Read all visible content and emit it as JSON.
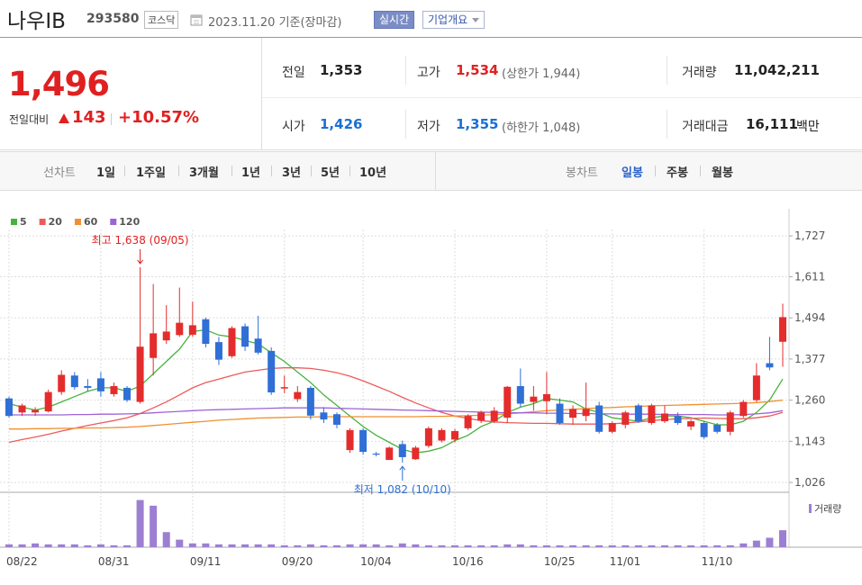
{
  "header": {
    "name": "나우IB",
    "code": "293580",
    "market": "코스닥",
    "date": "2023.11.20 기준(장마감)",
    "realtime_button": "실시간",
    "company_button": "기업개요"
  },
  "quote": {
    "price": "1,496",
    "change_label": "전일대비",
    "change": "143",
    "change_rate": "+10.57%",
    "items": [
      {
        "label": "전일",
        "value": "1,353"
      },
      {
        "label": "고가",
        "value": "1,534",
        "note": "(상한가 1,944)"
      },
      {
        "label": "거래량",
        "value": "11,042,211"
      },
      {
        "label": "시가",
        "value": "1,426"
      },
      {
        "label": "저가",
        "value": "1,355",
        "note": "(하한가 1,048)"
      },
      {
        "label": "거래대금",
        "value": "16,111",
        "unit": "백만"
      }
    ]
  },
  "tabs": {
    "line_label": "선차트",
    "line_periods": [
      "1일",
      "1주일",
      "3개월",
      "1년",
      "3년",
      "5년",
      "10년"
    ],
    "candle_label": "봉차트",
    "candle_periods": [
      "일봉",
      "주봉",
      "월봉"
    ],
    "selected_index": 0
  },
  "chart_data": [
    {
      "type": "candlestick",
      "categories": [
        "08/22",
        null,
        null,
        null,
        null,
        null,
        null,
        "08/31",
        null,
        null,
        null,
        null,
        null,
        null,
        "09/11",
        null,
        null,
        null,
        null,
        null,
        null,
        "09/20",
        null,
        null,
        null,
        null,
        null,
        "10/04",
        null,
        null,
        null,
        null,
        null,
        null,
        "10/16",
        null,
        null,
        null,
        null,
        null,
        null,
        "10/25",
        null,
        null,
        null,
        null,
        "11/01",
        null,
        null,
        null,
        null,
        null,
        null,
        "11/10",
        null,
        null,
        null,
        null,
        null,
        null
      ],
      "open": [
        1265,
        1225,
        1225,
        1228,
        1283,
        1330,
        1300,
        1322,
        1277,
        1295,
        1255,
        1380,
        1430,
        1445,
        1446,
        1490,
        1425,
        1385,
        1470,
        1435,
        1400,
        1293,
        1263,
        1295,
        1225,
        1220,
        1118,
        1175,
        1108,
        1090,
        1135,
        1092,
        1130,
        1145,
        1148,
        1180,
        1202,
        1200,
        1210,
        1300,
        1255,
        1257,
        1250,
        1210,
        1215,
        1245,
        1170,
        1190,
        1245,
        1195,
        1200,
        1215,
        1185,
        1195,
        1190,
        1170,
        1215,
        1260,
        1365,
        1426
      ],
      "high": [
        1270,
        1250,
        1240,
        1290,
        1345,
        1340,
        1320,
        1340,
        1310,
        1300,
        1638,
        1590,
        1530,
        1580,
        1540,
        1495,
        1440,
        1470,
        1478,
        1500,
        1410,
        1330,
        1300,
        1300,
        1240,
        1225,
        1180,
        1180,
        1113,
        1128,
        1145,
        1130,
        1185,
        1180,
        1178,
        1220,
        1230,
        1240,
        1300,
        1350,
        1300,
        1340,
        1265,
        1245,
        1310,
        1255,
        1200,
        1230,
        1250,
        1250,
        1245,
        1225,
        1205,
        1200,
        1195,
        1230,
        1260,
        1365,
        1440,
        1534
      ],
      "low": [
        1210,
        1215,
        1215,
        1225,
        1275,
        1290,
        1285,
        1270,
        1270,
        1255,
        1250,
        1330,
        1420,
        1440,
        1440,
        1410,
        1360,
        1380,
        1400,
        1390,
        1275,
        1280,
        1255,
        1205,
        1195,
        1180,
        1110,
        1105,
        1100,
        1090,
        1082,
        1090,
        1125,
        1140,
        1140,
        1175,
        1195,
        1195,
        1195,
        1240,
        1230,
        1220,
        1190,
        1190,
        1200,
        1165,
        1165,
        1180,
        1195,
        1190,
        1195,
        1190,
        1175,
        1150,
        1165,
        1160,
        1210,
        1255,
        1345,
        1355
      ],
      "close": [
        1215,
        1245,
        1232,
        1283,
        1332,
        1297,
        1295,
        1285,
        1300,
        1260,
        1412,
        1450,
        1455,
        1480,
        1473,
        1420,
        1375,
        1465,
        1412,
        1395,
        1282,
        1297,
        1283,
        1216,
        1205,
        1190,
        1175,
        1113,
        1105,
        1125,
        1098,
        1125,
        1180,
        1175,
        1172,
        1215,
        1225,
        1230,
        1298,
        1250,
        1270,
        1277,
        1195,
        1235,
        1235,
        1170,
        1195,
        1225,
        1200,
        1245,
        1222,
        1195,
        1200,
        1155,
        1170,
        1225,
        1255,
        1330,
        1353,
        1496
      ],
      "up_color": "#e52c2c",
      "down_color": "#2f6fd6",
      "series": [
        {
          "name": "5",
          "color": "#47b33c",
          "values": [
            1250,
            1240,
            1232,
            1240,
            1255,
            1270,
            1285,
            1295,
            1295,
            1285,
            1300,
            1335,
            1370,
            1405,
            1455,
            1460,
            1445,
            1440,
            1430,
            1420,
            1395,
            1370,
            1340,
            1310,
            1275,
            1245,
            1215,
            1185,
            1160,
            1140,
            1120,
            1110,
            1115,
            1125,
            1145,
            1160,
            1185,
            1200,
            1225,
            1240,
            1250,
            1265,
            1260,
            1255,
            1235,
            1225,
            1210,
            1205,
            1200,
            1210,
            1215,
            1215,
            1210,
            1200,
            1190,
            1190,
            1200,
            1225,
            1260,
            1320
          ]
        },
        {
          "name": "20",
          "color": "#ee5a5a",
          "values": [
            1140,
            1148,
            1155,
            1163,
            1172,
            1180,
            1188,
            1195,
            1202,
            1210,
            1222,
            1238,
            1255,
            1275,
            1295,
            1310,
            1320,
            1330,
            1340,
            1345,
            1350,
            1352,
            1352,
            1350,
            1345,
            1338,
            1328,
            1315,
            1300,
            1285,
            1268,
            1252,
            1238,
            1225,
            1215,
            1208,
            1202,
            1198,
            1196,
            1195,
            1194,
            1194,
            1193,
            1192,
            1192,
            1192,
            1193,
            1195,
            1198,
            1202,
            1205,
            1207,
            1208,
            1209,
            1208,
            1207,
            1207,
            1210,
            1215,
            1225
          ]
        },
        {
          "name": "60",
          "color": "#f0902f",
          "values": [
            1178,
            1178,
            1179,
            1179,
            1180,
            1180,
            1181,
            1181,
            1182,
            1183,
            1185,
            1188,
            1191,
            1194,
            1197,
            1200,
            1203,
            1205,
            1207,
            1209,
            1210,
            1211,
            1212,
            1212,
            1213,
            1213,
            1213,
            1213,
            1213,
            1213,
            1213,
            1213,
            1214,
            1214,
            1215,
            1216,
            1217,
            1219,
            1221,
            1224,
            1227,
            1230,
            1232,
            1234,
            1236,
            1238,
            1239,
            1241,
            1242,
            1244,
            1245,
            1246,
            1247,
            1248,
            1249,
            1250,
            1251,
            1253,
            1256,
            1260
          ]
        },
        {
          "name": "120",
          "color": "#9d63d6",
          "values": [
            1218,
            1218,
            1218,
            1218,
            1218,
            1219,
            1219,
            1220,
            1220,
            1221,
            1222,
            1224,
            1226,
            1228,
            1230,
            1232,
            1233,
            1234,
            1235,
            1236,
            1237,
            1238,
            1238,
            1238,
            1238,
            1237,
            1236,
            1235,
            1234,
            1233,
            1232,
            1231,
            1230,
            1229,
            1228,
            1227,
            1226,
            1225,
            1224,
            1224,
            1224,
            1223,
            1223,
            1222,
            1222,
            1221,
            1221,
            1220,
            1220,
            1220,
            1219,
            1219,
            1219,
            1219,
            1218,
            1218,
            1219,
            1221,
            1224,
            1230
          ]
        }
      ],
      "ylim": [
        998,
        1758
      ],
      "yticks": [
        {
          "value": 1026,
          "label": "1,026"
        },
        {
          "value": 1143,
          "label": "1,143"
        },
        {
          "value": 1260,
          "label": "1,260"
        },
        {
          "value": 1377,
          "label": "1,377"
        },
        {
          "value": 1494,
          "label": "1,494"
        },
        {
          "value": 1611,
          "label": "1,611"
        },
        {
          "value": 1727,
          "label": "1,727"
        }
      ],
      "grid": true,
      "legend": "top-left",
      "annotations": [
        {
          "text": "최고 1,638 (09/05)",
          "value": 1638,
          "color": "#e02020"
        },
        {
          "text": "최저 1,082 (10/10)",
          "value": 1082,
          "color": "#2f6fd6"
        }
      ]
    },
    {
      "type": "bar",
      "series": [
        {
          "name": "거래량",
          "color": "#9c7fd2",
          "values": [
            1840000,
            1840000,
            2450000,
            1840000,
            1840000,
            1840000,
            1230000,
            1840000,
            1230000,
            1230000,
            30650000,
            26970000,
            9810000,
            4900000,
            2450000,
            2450000,
            1840000,
            1840000,
            1840000,
            1840000,
            1840000,
            1230000,
            1230000,
            1840000,
            1230000,
            1230000,
            1840000,
            1840000,
            1840000,
            1230000,
            2450000,
            1840000,
            1230000,
            1230000,
            1230000,
            1230000,
            1230000,
            1230000,
            1840000,
            1840000,
            1230000,
            1230000,
            1230000,
            1230000,
            1230000,
            1230000,
            1230000,
            1230000,
            1230000,
            1230000,
            1230000,
            1230000,
            1230000,
            1230000,
            1230000,
            1230000,
            2450000,
            4290000,
            6130000,
            11042211
          ]
        }
      ],
      "ylim": [
        0,
        31000000
      ]
    }
  ]
}
